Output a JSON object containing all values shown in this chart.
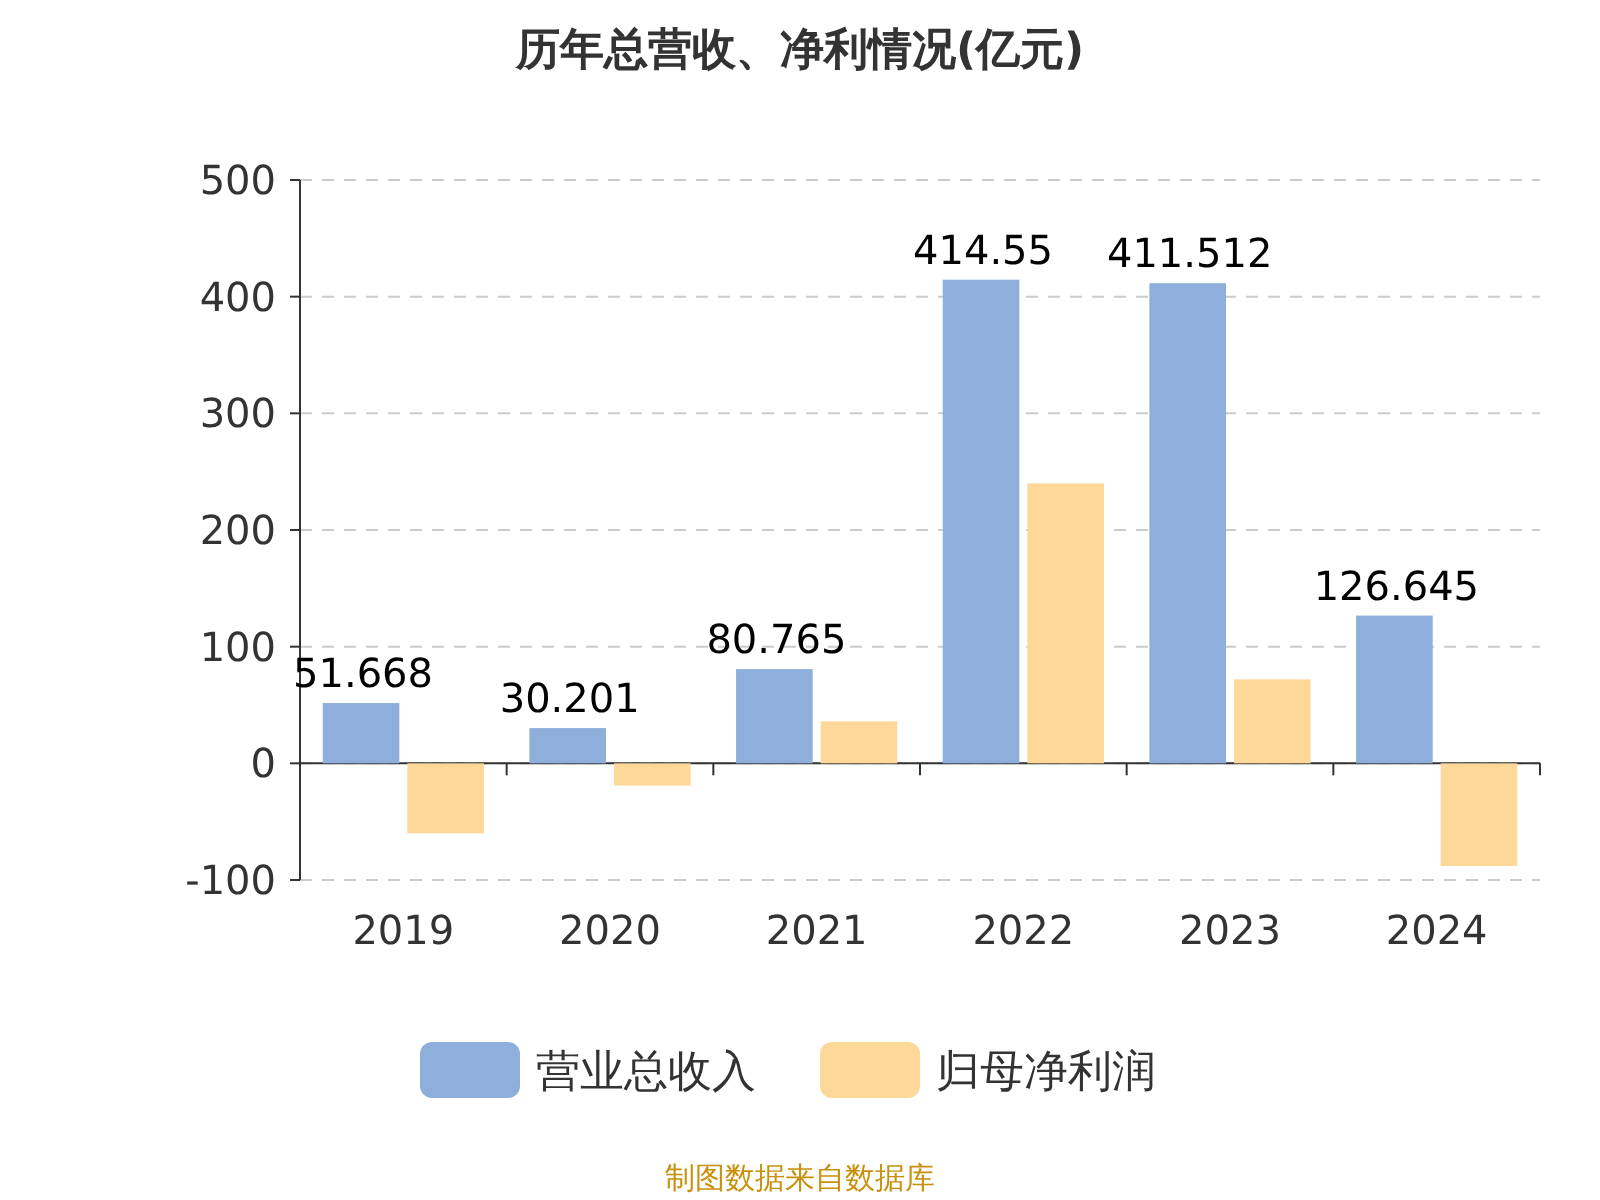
{
  "chart_data": {
    "type": "bar",
    "title": "历年总营收、净利情况(亿元)",
    "categories": [
      "2019",
      "2020",
      "2021",
      "2022",
      "2023",
      "2024"
    ],
    "series": [
      {
        "name": "营业总收入",
        "color": "#8eaedb",
        "values": [
          51.668,
          30.201,
          80.765,
          414.55,
          411.512,
          126.645
        ],
        "value_labels": [
          "51.668",
          "30.201",
          "80.765",
          "414.55",
          "411.512",
          "126.645"
        ]
      },
      {
        "name": "归母净利润",
        "color": "#fed899",
        "values": [
          -60,
          -19,
          36,
          240,
          72,
          -88
        ]
      }
    ],
    "ylim": [
      -100,
      500
    ],
    "yticks": [
      -100,
      0,
      100,
      200,
      300,
      400,
      500
    ],
    "grid": "y",
    "legend": "bottom",
    "annotations": [
      "制图数据来自数据库"
    ]
  }
}
